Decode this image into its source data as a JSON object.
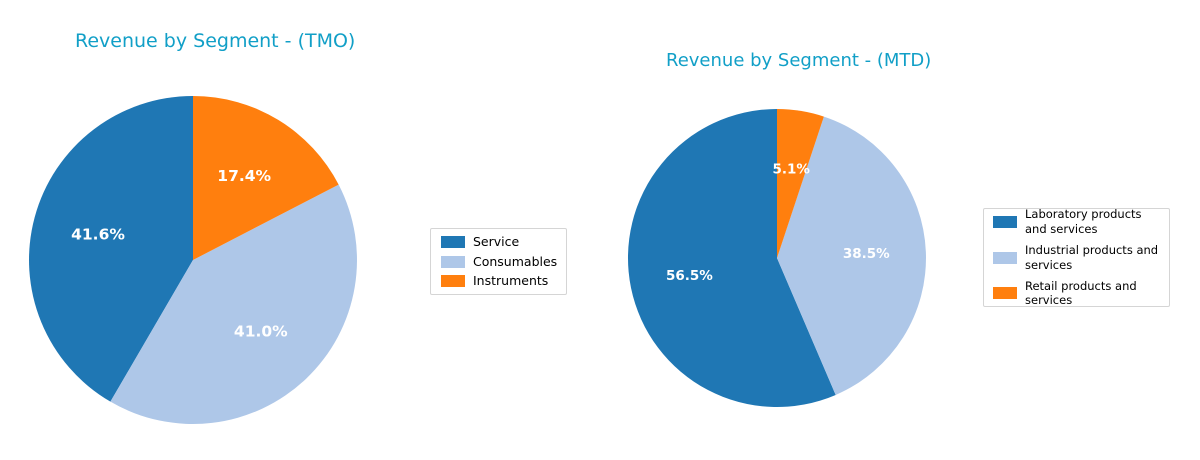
{
  "page": {
    "background_color": "#ffffff",
    "title_color": "#119fc7"
  },
  "chart_data": [
    {
      "type": "pie",
      "title": "Revenue by Segment - (TMO)",
      "title_color": "#119fc7",
      "categories": [
        "Service",
        "Consumables",
        "Instruments"
      ],
      "values": [
        41.6,
        41.0,
        17.4
      ],
      "pct_labels": [
        "41.6%",
        "41.0%",
        "17.4%"
      ],
      "colors": [
        "#1f77b4",
        "#aec7e8",
        "#ff7f0e"
      ],
      "label_text_color": "#ffffff",
      "start_angle": 90,
      "direction": "counterclockwise",
      "legend_position": "right of chart",
      "legend_entries": [
        "Service",
        "Consumables",
        "Instruments"
      ]
    },
    {
      "type": "pie",
      "title": "Revenue by Segment - (MTD)",
      "title_color": "#119fc7",
      "categories": [
        "Laboratory products and services",
        "Industrial products and services",
        "Retail products and services"
      ],
      "values": [
        56.5,
        38.5,
        5.1
      ],
      "pct_labels": [
        "56.5%",
        "38.5%",
        "5.1%"
      ],
      "colors": [
        "#1f77b4",
        "#aec7e8",
        "#ff7f0e"
      ],
      "label_text_color": "#ffffff",
      "start_angle": 90,
      "direction": "counterclockwise",
      "legend_position": "right of chart",
      "legend_entries": [
        "Laboratory products and services",
        "Industrial products and services",
        "Retail products and services"
      ]
    }
  ]
}
